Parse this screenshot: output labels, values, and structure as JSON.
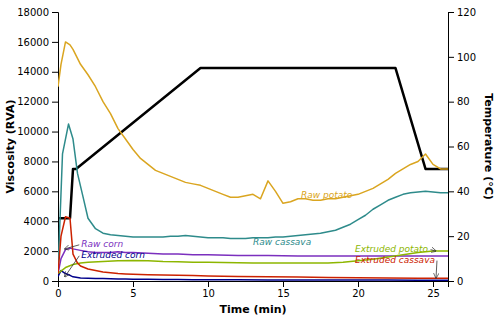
{
  "chart_data": {
    "type": "line",
    "xlabel": "Time (min)",
    "ylabel": "Viscosity (RVA)",
    "y2label": "Temperature (°C)",
    "xlim": [
      0,
      26
    ],
    "xticks": [
      0,
      5,
      10,
      15,
      20,
      25
    ],
    "ylim": [
      0,
      18000
    ],
    "yticks": [
      0,
      2000,
      4000,
      6000,
      8000,
      10000,
      12000,
      14000,
      16000,
      18000
    ],
    "y2lim": [
      0,
      120
    ],
    "y2ticks": [
      0,
      20,
      40,
      60,
      80,
      100,
      120
    ],
    "series": [
      {
        "color": "#000000",
        "axis": "y2",
        "x": [
          0.0,
          0.8,
          1.0,
          1.2,
          9.5,
          10.5,
          15.0,
          22.5,
          24.5,
          26.0
        ],
        "values": [
          28,
          28,
          50,
          50,
          95,
          95,
          95,
          95,
          50,
          50
        ]
      },
      {
        "color": "#DAA520",
        "x": [
          0,
          0.2,
          0.5,
          0.8,
          1.0,
          1.5,
          2.0,
          2.5,
          3.0,
          3.5,
          4.0,
          4.5,
          5.0,
          5.5,
          6.0,
          6.5,
          7.0,
          7.5,
          8.0,
          8.5,
          9.0,
          9.5,
          10.0,
          10.5,
          11.0,
          11.5,
          12.0,
          12.5,
          13.0,
          13.5,
          14.0,
          14.5,
          15.0,
          15.5,
          16.0,
          16.5,
          17.0,
          17.5,
          18.0,
          18.5,
          19.0,
          19.5,
          20.0,
          20.5,
          21.0,
          21.5,
          22.0,
          22.5,
          23.0,
          23.5,
          24.0,
          24.5,
          25.0,
          25.5,
          26.0
        ],
        "values": [
          13000,
          14500,
          16000,
          15800,
          15500,
          14500,
          13800,
          13000,
          12000,
          11200,
          10200,
          9500,
          8800,
          8200,
          7800,
          7400,
          7200,
          7000,
          6800,
          6600,
          6500,
          6400,
          6200,
          6000,
          5800,
          5600,
          5600,
          5700,
          5800,
          5500,
          6700,
          6000,
          5200,
          5300,
          5500,
          5500,
          5400,
          5400,
          5500,
          5500,
          5600,
          5700,
          5800,
          6000,
          6200,
          6500,
          6800,
          7200,
          7500,
          7800,
          8000,
          8500,
          7800,
          7500,
          7500
        ]
      },
      {
        "color": "#2E8B8B",
        "x": [
          0,
          0.3,
          0.7,
          1.0,
          1.3,
          1.7,
          2.0,
          2.5,
          3.0,
          3.5,
          4.0,
          4.5,
          5.0,
          5.5,
          6.0,
          6.5,
          7.0,
          7.5,
          8.0,
          8.5,
          9.0,
          9.5,
          10.0,
          10.5,
          11.0,
          11.5,
          12.0,
          12.5,
          13.0,
          13.5,
          14.0,
          14.5,
          15.0,
          15.5,
          16.0,
          16.5,
          17.0,
          17.5,
          18.0,
          18.5,
          19.0,
          19.5,
          20.0,
          20.5,
          21.0,
          21.5,
          22.0,
          22.5,
          23.0,
          23.5,
          24.0,
          24.5,
          25.0,
          25.5,
          26.0
        ],
        "values": [
          600,
          8500,
          10500,
          9500,
          7200,
          5500,
          4200,
          3500,
          3200,
          3100,
          3050,
          3000,
          2950,
          2950,
          2950,
          2950,
          2950,
          3000,
          3000,
          3050,
          3000,
          2950,
          2900,
          2900,
          2900,
          2850,
          2850,
          2850,
          2900,
          2900,
          2900,
          2950,
          2950,
          3000,
          3050,
          3100,
          3150,
          3200,
          3300,
          3400,
          3600,
          3800,
          4100,
          4400,
          4800,
          5100,
          5400,
          5600,
          5800,
          5900,
          5950,
          6000,
          5950,
          5900,
          5900
        ]
      },
      {
        "color": "#7B2FBE",
        "x": [
          0,
          0.2,
          0.5,
          0.8,
          1.0,
          1.5,
          2.0,
          2.5,
          3.0,
          3.5,
          4.0,
          4.5,
          5.0,
          6.0,
          7.0,
          8.0,
          9.0,
          10.0,
          12.0,
          14.0,
          16.0,
          18.0,
          20.0,
          22.0,
          24.0,
          26.0
        ],
        "values": [
          500,
          1500,
          2100,
          2200,
          2150,
          2050,
          1950,
          1900,
          1900,
          1900,
          1950,
          1900,
          1900,
          1850,
          1800,
          1800,
          1750,
          1750,
          1700,
          1700,
          1680,
          1680,
          1680,
          1680,
          1680,
          1680
        ]
      },
      {
        "color": "#00008B",
        "x": [
          0,
          0.2,
          0.5,
          0.8,
          1.0,
          1.5,
          2.0,
          2.5,
          3.0,
          3.5,
          4.0,
          4.5,
          5.0,
          6.0,
          7.0,
          8.0,
          9.0,
          10.0,
          12.0,
          14.0,
          16.0,
          18.0,
          20.0,
          22.0,
          24.0,
          26.0
        ],
        "values": [
          300,
          700,
          500,
          380,
          280,
          200,
          180,
          170,
          160,
          150,
          140,
          130,
          120,
          110,
          100,
          95,
          90,
          85,
          80,
          75,
          70,
          65,
          65,
          60,
          55,
          55
        ]
      },
      {
        "color": "#8DB600",
        "x": [
          0,
          0.5,
          1.0,
          1.5,
          2.0,
          3.0,
          4.0,
          5.0,
          6.0,
          7.0,
          8.0,
          9.0,
          10.0,
          11.0,
          12.0,
          13.0,
          14.0,
          15.0,
          16.0,
          17.0,
          18.0,
          19.0,
          20.0,
          21.0,
          22.0,
          23.0,
          24.0,
          24.5,
          25.0,
          25.5,
          26.0
        ],
        "values": [
          500,
          900,
          1100,
          1200,
          1250,
          1300,
          1350,
          1380,
          1350,
          1300,
          1280,
          1260,
          1250,
          1230,
          1220,
          1210,
          1200,
          1200,
          1200,
          1200,
          1200,
          1250,
          1350,
          1450,
          1600,
          1750,
          1900,
          1950,
          2000,
          2000,
          2000
        ]
      },
      {
        "color": "#CC2200",
        "x": [
          0,
          0.2,
          0.5,
          0.8,
          1.0,
          1.3,
          1.5,
          2.0,
          2.5,
          3.0,
          3.5,
          4.0,
          4.5,
          5.0,
          6.0,
          7.0,
          8.0,
          9.0,
          10.0,
          12.0,
          14.0,
          16.0,
          18.0,
          20.0,
          22.0,
          24.0,
          26.0
        ],
        "values": [
          500,
          3000,
          4300,
          4200,
          1800,
          1200,
          1000,
          800,
          700,
          600,
          550,
          500,
          470,
          450,
          420,
          400,
          380,
          360,
          340,
          300,
          280,
          260,
          240,
          220,
          200,
          190,
          180
        ]
      }
    ],
    "annotations": [
      {
        "text": "Raw potato",
        "x": 16.2,
        "y": 5700,
        "color": "#DAA520"
      },
      {
        "text": "Raw cassava",
        "x": 13.0,
        "y": 2600,
        "color": "#2E8B8B"
      },
      {
        "text": "Raw corn",
        "x": 1.55,
        "y": 2420,
        "color": "#7B2FBE",
        "arrow": [
          0.45,
          2150
        ]
      },
      {
        "text": "Extruded corn",
        "x": 1.55,
        "y": 2080,
        "color": "#00008B",
        "arrow": [
          0.45,
          280
        ]
      },
      {
        "text": "Extruded potato",
        "x": 19.8,
        "y": 2100,
        "color": "#8DB600",
        "arrow": [
          25.2,
          2000
        ]
      },
      {
        "text": "Extruded cassava",
        "x": 19.8,
        "y": 1700,
        "color": "#CC2200",
        "arrow": [
          25.2,
          200
        ]
      }
    ]
  }
}
